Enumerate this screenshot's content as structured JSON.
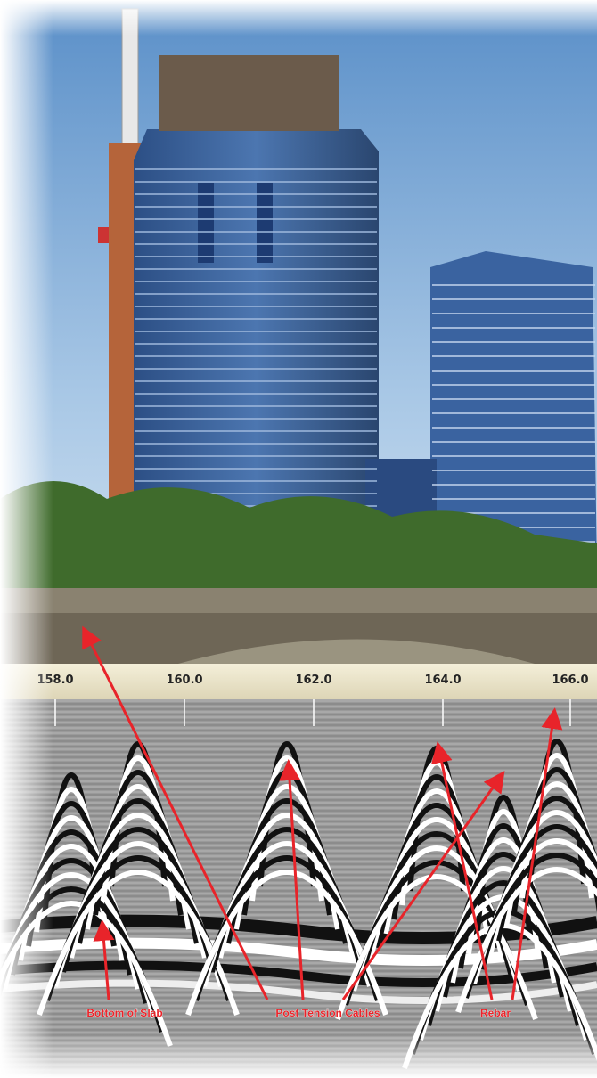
{
  "scale": {
    "labels": [
      "158.0",
      "160.0",
      "162.0",
      "164.0",
      "166.0"
    ]
  },
  "annotations": {
    "bottom_of_slab": "Bottom of Slab",
    "post_tension_cables": "Post Tension Cables",
    "rebar": "Rebar"
  }
}
